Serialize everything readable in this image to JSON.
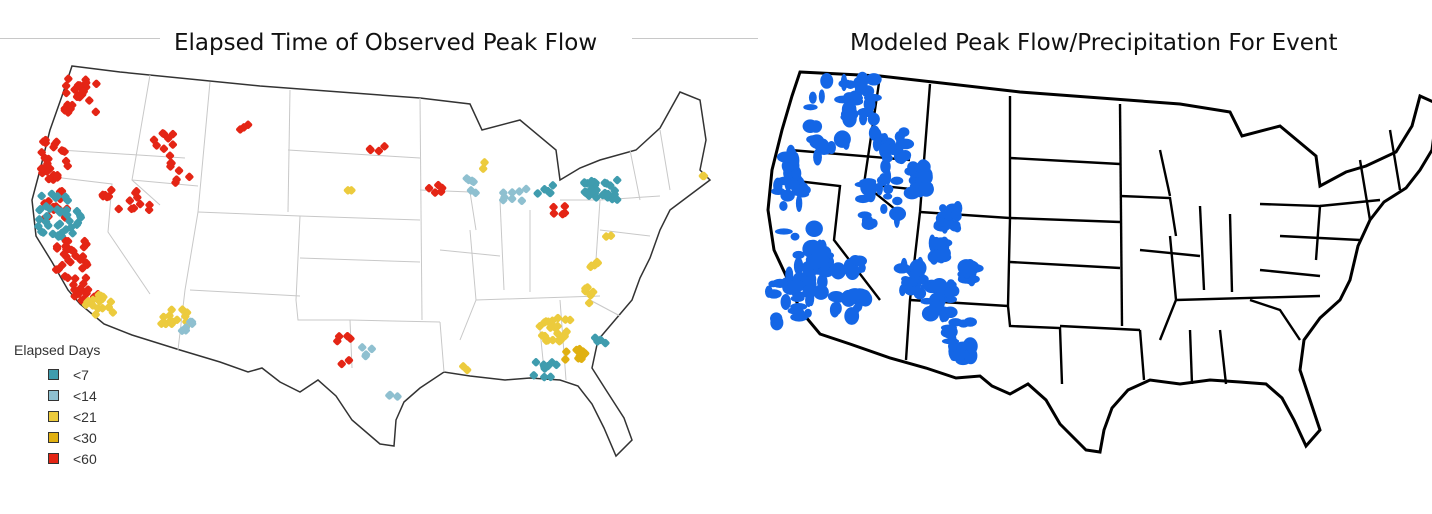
{
  "left_map": {
    "title": "Elapsed Time of Observed Peak Flow",
    "legend": {
      "title": "Elapsed Days",
      "items": [
        {
          "label": "<7",
          "color": "#3f9cae"
        },
        {
          "label": "<14",
          "color": "#8fc0d0"
        },
        {
          "label": "<21",
          "color": "#eccb3d"
        },
        {
          "label": "<30",
          "color": "#e0b010"
        },
        {
          "label": "<60",
          "color": "#e42515"
        }
      ]
    }
  },
  "right_map": {
    "title": "Modeled Peak Flow/Precipitation For Event",
    "fill_color": "#1466e6"
  }
}
